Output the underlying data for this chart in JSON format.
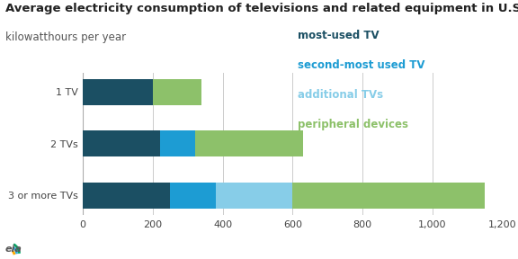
{
  "title": "Average electricity consumption of televisions and related equipment in U.S. homes",
  "subtitle": "kilowatthours per year",
  "categories": [
    "3 or more TVs",
    "2 TVs",
    "1 TV"
  ],
  "segments": {
    "most_used_tv": [
      250,
      220,
      200
    ],
    "second_most_used_tv": [
      130,
      100,
      0
    ],
    "additional_tvs": [
      220,
      0,
      0
    ],
    "peripheral_devices": [
      550,
      310,
      140
    ]
  },
  "colors": {
    "most_used_tv": "#1b4f63",
    "second_most_used_tv": "#1d9cd3",
    "additional_tvs": "#87cde8",
    "peripheral_devices": "#8dc16a"
  },
  "legend_labels": {
    "most_used_tv": "most-used TV",
    "second_most_used_tv": "second-most used TV",
    "additional_tvs": "additional TVs",
    "peripheral_devices": "peripheral devices"
  },
  "legend_text_colors": {
    "most_used_tv": "#1b4f63",
    "second_most_used_tv": "#1d9cd3",
    "additional_tvs": "#87cde8",
    "peripheral_devices": "#8dc16a"
  },
  "xlim": [
    0,
    1200
  ],
  "xticks": [
    0,
    200,
    400,
    600,
    800,
    1000,
    1200
  ],
  "xtick_labels": [
    "0",
    "200",
    "400",
    "600",
    "800",
    "1,000",
    "1,200"
  ],
  "background_color": "#ffffff",
  "title_fontsize": 9.5,
  "subtitle_fontsize": 8.5,
  "tick_fontsize": 8,
  "legend_fontsize": 8.5,
  "bar_height": 0.5
}
